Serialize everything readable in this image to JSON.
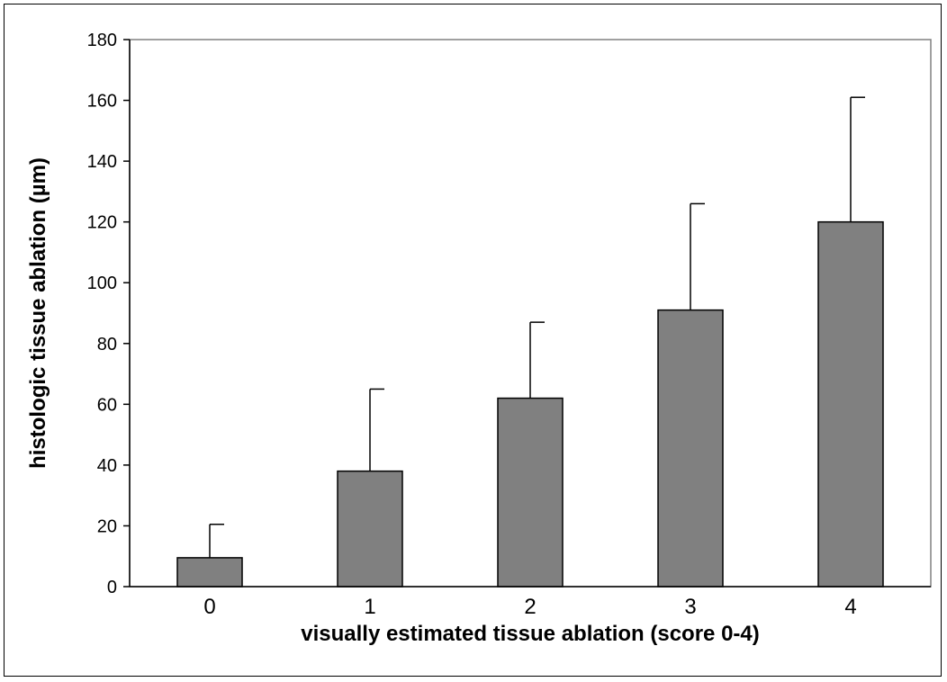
{
  "chart_data": {
    "type": "bar",
    "categories": [
      "0",
      "1",
      "2",
      "3",
      "4"
    ],
    "values": [
      9.5,
      38,
      62,
      91,
      120
    ],
    "error_upper": [
      20.5,
      65,
      87,
      126,
      161
    ],
    "xlabel": "visually estimated tissue ablation (score 0-4)",
    "ylabel": "histologic tissue ablation (µm)",
    "ylim": [
      0,
      180
    ],
    "yticks": [
      "0",
      "20",
      "40",
      "60",
      "80",
      "100",
      "120",
      "140",
      "160",
      "180"
    ],
    "grid": false,
    "legend": "none",
    "bar_color": "#808080"
  }
}
